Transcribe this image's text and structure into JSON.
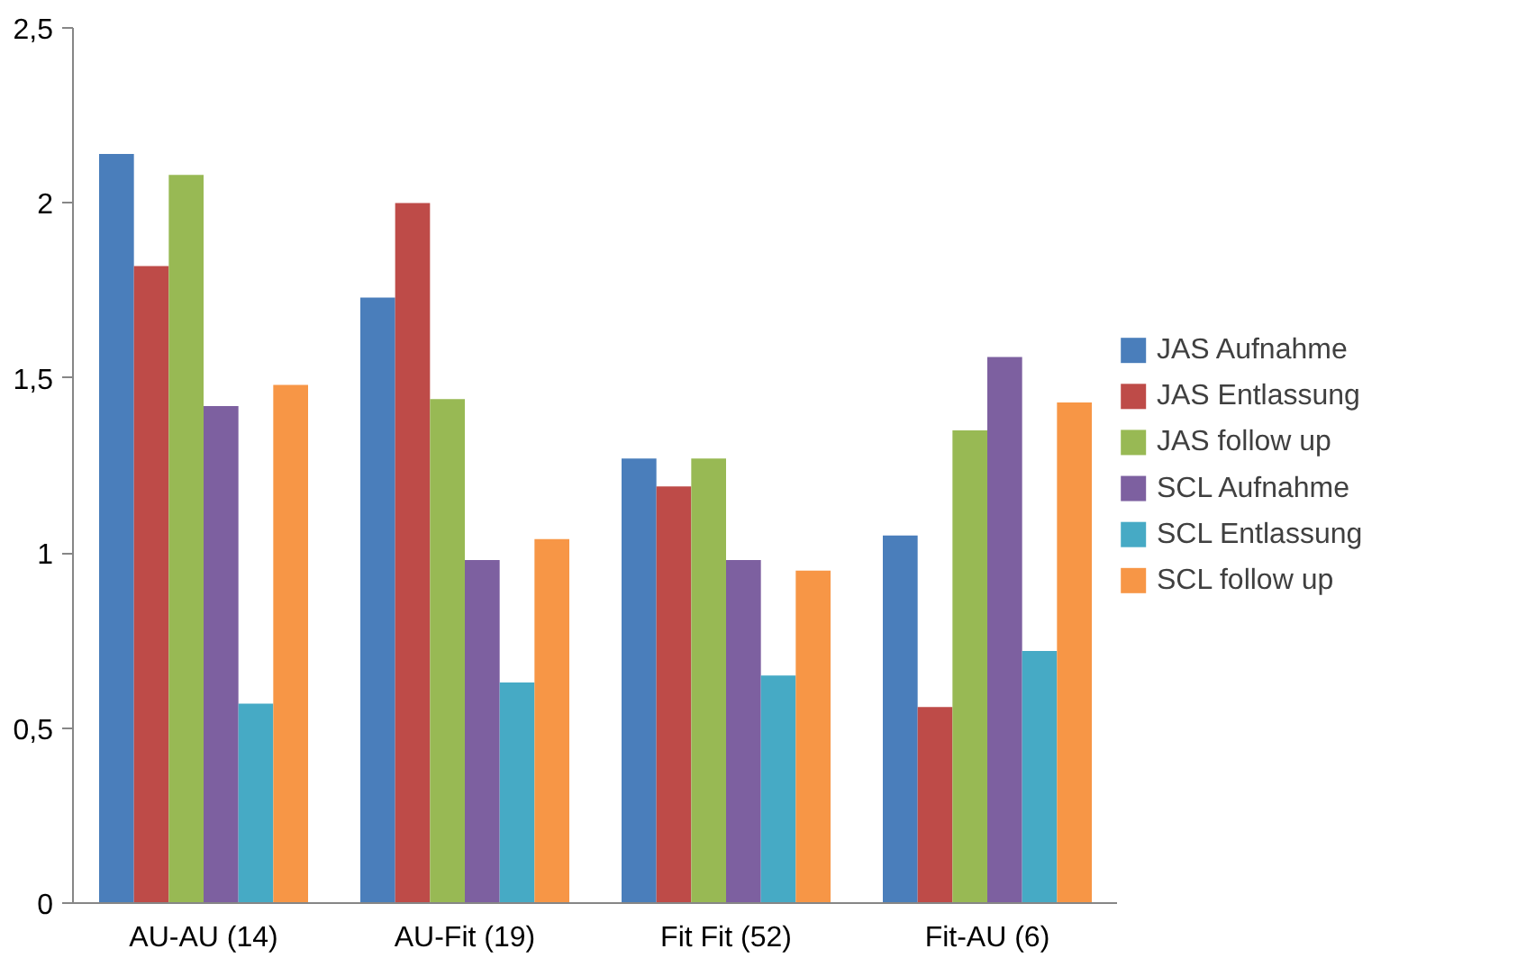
{
  "chart_data": {
    "type": "bar",
    "categories": [
      "AU-AU (14)",
      "AU-Fit (19)",
      "Fit Fit (52)",
      "Fit-AU (6)"
    ],
    "series": [
      {
        "name": "JAS Aufnahme",
        "color": "#4a7ebb",
        "values": [
          2.14,
          1.73,
          1.27,
          1.05
        ]
      },
      {
        "name": "JAS Entlassung",
        "color": "#be4b48",
        "values": [
          1.82,
          2.0,
          1.19,
          0.56
        ]
      },
      {
        "name": "JAS follow up",
        "color": "#98b954",
        "values": [
          2.08,
          1.44,
          1.27,
          1.35
        ]
      },
      {
        "name": "SCL Aufnahme",
        "color": "#7d60a0",
        "values": [
          1.42,
          0.98,
          0.98,
          1.56
        ]
      },
      {
        "name": "SCL Entlassung",
        "color": "#46aac5",
        "values": [
          0.57,
          0.63,
          0.65,
          0.72
        ]
      },
      {
        "name": "SCL follow up",
        "color": "#f79646",
        "values": [
          1.48,
          1.04,
          0.95,
          1.43
        ]
      }
    ],
    "ylim": [
      0,
      2.5
    ],
    "yticks": [
      0,
      {
        "value": 0.5,
        "label": "0,5"
      },
      1,
      {
        "value": 1.5,
        "label": "1,5"
      },
      2,
      {
        "value": 2.5,
        "label": "2,5"
      }
    ],
    "grid": false,
    "legend": "right"
  }
}
